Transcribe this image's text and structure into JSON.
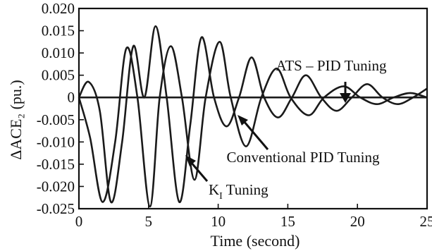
{
  "chart_data": {
    "type": "line",
    "xlabel": "Time (second)",
    "ylabel": "ΔACE₂ (pu.)",
    "xlim": [
      0,
      25
    ],
    "ylim": [
      -0.025,
      0.02
    ],
    "x_ticks": [
      0,
      5,
      10,
      15,
      20,
      25
    ],
    "x_tick_labels": [
      "0",
      "5",
      "10",
      "15",
      "20",
      "25"
    ],
    "y_ticks": [
      0.02,
      0.015,
      0.01,
      0.005,
      0,
      -0.005,
      -0.01,
      -0.015,
      -0.02,
      -0.025
    ],
    "y_tick_labels": [
      "0.020",
      "0.015",
      "0.010",
      "0.005",
      "0",
      "-0.005",
      "-0.010",
      "-0.015",
      "-0.020",
      "-0.025"
    ],
    "grid": false,
    "series": [
      {
        "name": "K_I Tuning",
        "x": [
          0,
          0.8,
          1.7,
          2.6,
          3.4,
          4.2,
          5.1,
          5.8,
          6.6,
          7.4,
          8.3,
          9.1,
          10.1,
          10.9,
          12.0,
          13.1,
          14.2,
          15.2,
          16.5,
          17.6,
          19.0,
          20.2,
          21.4,
          22.6,
          23.8,
          25
        ],
        "y": [
          0,
          -0.009,
          -0.0235,
          -0.01,
          0.011,
          0.0,
          -0.0245,
          0.0,
          0.0115,
          0.0,
          -0.0185,
          0.0,
          0.0125,
          0.0,
          -0.011,
          0.0,
          0.0065,
          0.0,
          -0.004,
          0.0,
          0.0025,
          0.0,
          -0.0015,
          0.0,
          0.001,
          0.0
        ]
      },
      {
        "name": "Conventional PID Tuning",
        "x": [
          0,
          0.7,
          1.5,
          2.3,
          3.1,
          3.9,
          4.7,
          5.5,
          6.3,
          7.2,
          8.0,
          8.8,
          9.7,
          10.6,
          11.5,
          12.4,
          13.3,
          14.3,
          15.3,
          16.3,
          17.4,
          18.5,
          19.6,
          20.7,
          21.8,
          22.9,
          24.0,
          25
        ],
        "y": [
          0,
          0.0035,
          -0.003,
          -0.0235,
          -0.01,
          0.0115,
          0.0,
          0.016,
          0.0,
          -0.0235,
          -0.006,
          0.0135,
          0.0,
          -0.0065,
          0.0,
          0.009,
          0.0,
          -0.0045,
          0.0,
          0.005,
          0.0,
          -0.003,
          0.0,
          0.003,
          0.0,
          -0.0015,
          0.0,
          0.002
        ]
      },
      {
        "name": "ATS – PID Tuning",
        "x": [
          0,
          25
        ],
        "y": [
          0,
          0
        ]
      }
    ],
    "annotations": [
      {
        "text": "ATS – PID  Tuning"
      },
      {
        "text": "Conventional PID   Tuning"
      },
      {
        "text": "K",
        "subscript": "I",
        "suffix": " Tuning"
      }
    ]
  }
}
